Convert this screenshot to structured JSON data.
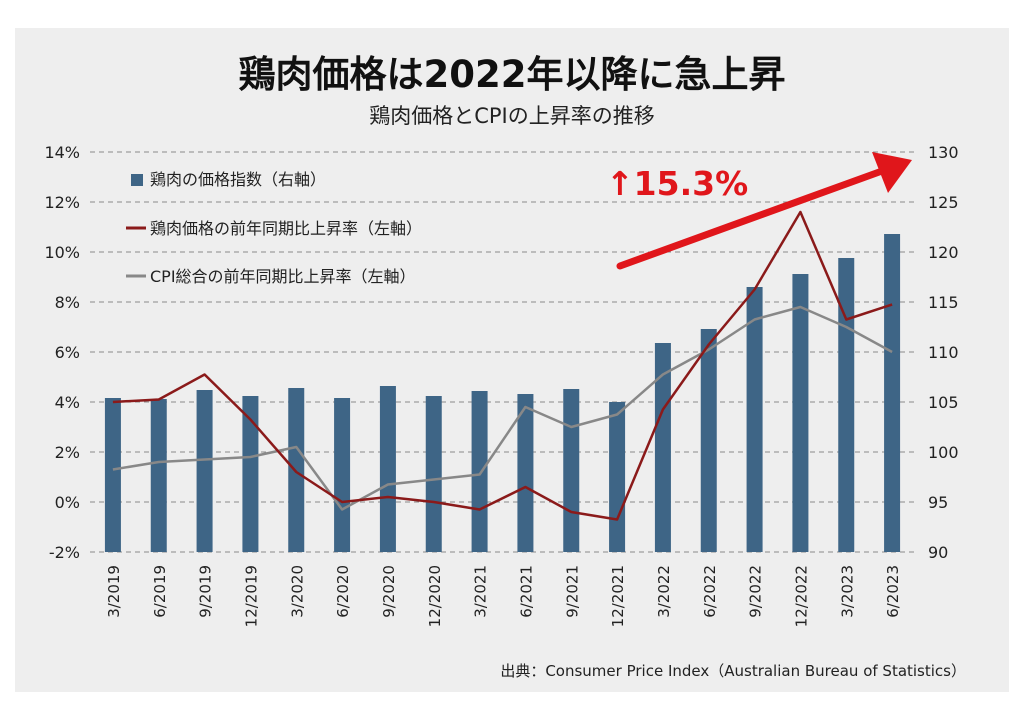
{
  "title": "鶏肉価格は2022年以降に急上昇",
  "subtitle": "鶏肉価格とCPIの上昇率の推移",
  "source": "出典：Consumer Price Index（Australian Bureau of Statistics）",
  "annotation": "↑15.3%",
  "colors": {
    "bar": "#3e6586",
    "chicken_line": "#8b1a1a",
    "cpi_line": "#888888",
    "arrow": "#e0161b",
    "annotation": "#e0161b"
  },
  "chart_data": {
    "type": "bar",
    "categories": [
      "3/2019",
      "6/2019",
      "9/2019",
      "12/2019",
      "3/2020",
      "6/2020",
      "9/2020",
      "12/2020",
      "3/2021",
      "6/2021",
      "9/2021",
      "12/2021",
      "3/2022",
      "6/2022",
      "9/2022",
      "12/2022",
      "3/2023",
      "6/2023"
    ],
    "left_axis": {
      "ticks": [
        "14%",
        "12%",
        "10%",
        "8%",
        "6%",
        "4%",
        "2%",
        "0%",
        "-2%"
      ],
      "ylim": [
        -2,
        14
      ]
    },
    "right_axis": {
      "ticks": [
        "130",
        "125",
        "120",
        "115",
        "110",
        "105",
        "100",
        "95",
        "90"
      ],
      "ylim": [
        90,
        130
      ]
    },
    "grid": true,
    "legend_position": "top-left",
    "series": [
      {
        "name": "鶏肉の価格指数（右軸）",
        "type": "bar",
        "axis": "right",
        "values": [
          105.4,
          105.3,
          106.2,
          105.6,
          106.4,
          105.4,
          106.6,
          105.6,
          106.1,
          105.8,
          106.3,
          105.0,
          110.9,
          112.3,
          116.5,
          117.8,
          119.4,
          121.8
        ]
      },
      {
        "name": "鶏肉価格の前年同期比上昇率（左軸）",
        "type": "line",
        "axis": "left",
        "values": [
          4.0,
          4.1,
          5.1,
          3.3,
          1.2,
          0.0,
          0.2,
          0.0,
          -0.3,
          0.6,
          -0.4,
          -0.7,
          3.7,
          6.3,
          8.5,
          11.6,
          7.3,
          7.9
        ]
      },
      {
        "name": "CPI総合の前年同期比上昇率（左軸）",
        "type": "line",
        "axis": "left",
        "values": [
          1.3,
          1.6,
          1.7,
          1.8,
          2.2,
          -0.3,
          0.7,
          0.9,
          1.1,
          3.8,
          3.0,
          3.5,
          5.1,
          6.1,
          7.3,
          7.8,
          7.0,
          6.0
        ]
      }
    ]
  }
}
